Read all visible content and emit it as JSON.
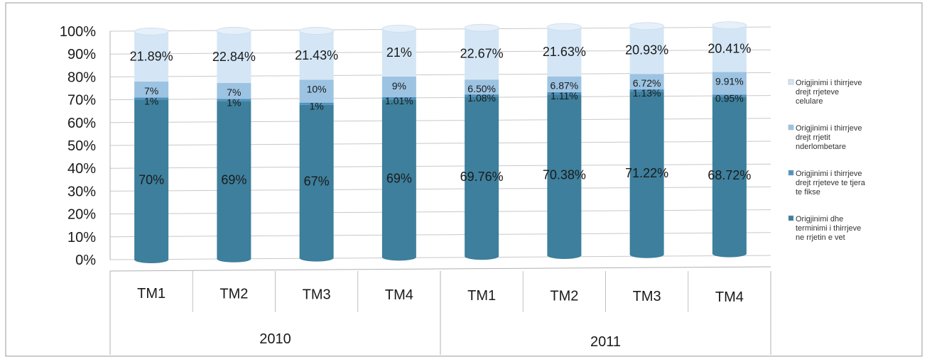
{
  "chart_data": {
    "type": "bar",
    "stacked": true,
    "percent_stacked": true,
    "three_d": true,
    "y_ticks": [
      "0%",
      "10%",
      "20%",
      "30%",
      "40%",
      "50%",
      "60%",
      "70%",
      "80%",
      "90%",
      "100%"
    ],
    "ylim": [
      0,
      100
    ],
    "grid": true,
    "legend_position": "right",
    "groups": [
      {
        "label": "2010",
        "categories": [
          "TM1",
          "TM2",
          "TM3",
          "TM4"
        ]
      },
      {
        "label": "2011",
        "categories": [
          "TM1",
          "TM2",
          "TM3",
          "TM4"
        ]
      }
    ],
    "series": [
      {
        "name": "Origjinimi dhe terminimi i thirrjeve ne rrjetin e vet",
        "color": "#3d7f9c",
        "values": [
          70,
          69,
          67,
          69,
          69.76,
          70.38,
          71.22,
          68.72
        ],
        "labels": [
          "70%",
          "69%",
          "67%",
          "69%",
          "69.76%",
          "70.38%",
          "71.22%",
          "68.72%"
        ]
      },
      {
        "name": "Origjinimi i thirrjeve drejt rrjeteve te tjera te fikse",
        "color": "#4f93c0",
        "values": [
          1,
          1,
          1,
          1.01,
          1.08,
          1.11,
          1.13,
          0.95
        ],
        "labels": [
          "1%",
          "1%",
          "1%",
          "1.01%",
          "1.08%",
          "1.11%",
          "1.13%",
          "0.95%"
        ]
      },
      {
        "name": "Origjinimi i thirrjeve drejt rrjetit nderlombetare",
        "color": "#9cc3e2",
        "values": [
          7,
          7,
          10,
          9,
          6.5,
          6.87,
          6.72,
          9.91
        ],
        "labels": [
          "7%",
          "7%",
          "10%",
          "9%",
          "6.50%",
          "6.87%",
          "6.72%",
          "9.91%"
        ]
      },
      {
        "name": "Origjinimi i thirrjeve drejt rrjeteve celulare",
        "color": "#d4e6f5",
        "values": [
          21.89,
          22.84,
          21.43,
          21,
          22.67,
          21.63,
          20.93,
          20.41
        ],
        "labels": [
          "21.89%",
          "22.84%",
          "21.43%",
          "21%",
          "22.67%",
          "21.63%",
          "20.93%",
          "20.41%"
        ]
      }
    ],
    "legend": [
      {
        "lines": [
          "Origjinimi i thirrjeve",
          "drejt rrjeteve",
          "celulare"
        ],
        "color": "#d4e6f5"
      },
      {
        "lines": [
          "Origjinimi i thirrjeve",
          "drejt rrjetit",
          "nderlombetare"
        ],
        "color": "#9cc3e2"
      },
      {
        "lines": [
          "Origjinimi i thirrjeve",
          "drejt rrjeteve te tjera",
          "te fikse"
        ],
        "color": "#4f93c0"
      },
      {
        "lines": [
          "Origjinimi dhe",
          "terminimi i thirrjeve",
          "ne rrjetin e vet"
        ],
        "color": "#3d7f9c"
      }
    ]
  }
}
